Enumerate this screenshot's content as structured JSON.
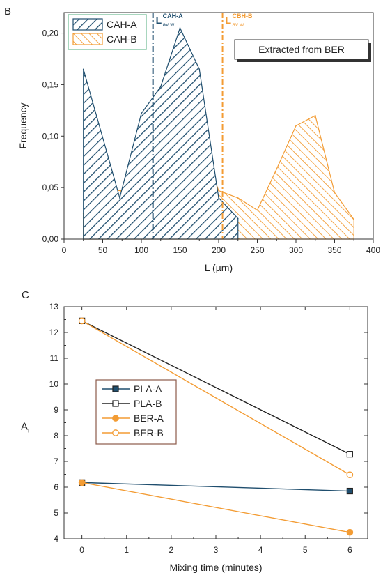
{
  "chart_data": [
    {
      "panel": "B",
      "type": "area",
      "xlabel": "L (µm)",
      "ylabel": "Frequency",
      "xlim": [
        0,
        400
      ],
      "ylim": [
        0,
        0.22
      ],
      "xticks": [
        0,
        50,
        100,
        150,
        200,
        250,
        300,
        350,
        400
      ],
      "yticks": [
        0,
        0.05,
        0.1,
        0.15,
        0.2
      ],
      "ytick_labels": [
        "0,00",
        "0,05",
        "0,10",
        "0,15",
        "0,20"
      ],
      "annotation": "Extracted from BER",
      "legend": {
        "placement": "top-left",
        "entries": [
          "CAH-A",
          "CAH-B"
        ]
      },
      "series": [
        {
          "name": "CAH-A",
          "color": "#1f4e6e",
          "x": [
            25,
            72,
            100,
            125,
            150,
            175,
            200,
            225
          ],
          "y": [
            0.165,
            0.04,
            0.122,
            0.148,
            0.205,
            0.165,
            0.04,
            0.02
          ]
        },
        {
          "name": "CAH-B",
          "color": "#f39c34",
          "x": [
            25,
            50,
            75,
            100,
            125,
            150,
            175,
            200,
            225,
            250,
            275,
            300,
            325,
            350,
            375
          ],
          "y": [
            0.025,
            0.047,
            0.047,
            0.075,
            0.1,
            0.14,
            0.1,
            0.047,
            0.04,
            0.028,
            0.068,
            0.11,
            0.12,
            0.045,
            0.019
          ]
        }
      ],
      "vlines": [
        {
          "label_main": "L",
          "label_sup": "CAH-A",
          "label_sub": "av w",
          "x": 115,
          "color": "#1f4e6e"
        },
        {
          "label_main": "L",
          "label_sup": "CBH-B",
          "label_sub": "av w",
          "x": 205,
          "color": "#f39c34"
        }
      ]
    },
    {
      "panel": "C",
      "type": "line",
      "xlabel": "Mixing time (minutes)",
      "ylabel_main": "A",
      "ylabel_sub": "r",
      "xlim": [
        -0.4,
        6.4
      ],
      "ylim": [
        4,
        13
      ],
      "xticks": [
        0,
        1,
        2,
        3,
        4,
        5,
        6
      ],
      "yticks": [
        4,
        5,
        6,
        7,
        8,
        9,
        10,
        11,
        12,
        13
      ],
      "legend": {
        "placement": "center-left",
        "entries": [
          "PLA-A",
          "PLA-B",
          "BER-A",
          "BER-B"
        ]
      },
      "series": [
        {
          "name": "PLA-A",
          "color": "#1f4e6e",
          "line_color": "#1f4e6e",
          "marker": "square-filled",
          "x": [
            0,
            6
          ],
          "y": [
            6.18,
            5.85
          ]
        },
        {
          "name": "PLA-B",
          "color": "#222222",
          "line_color": "#222222",
          "marker": "square-open",
          "x": [
            0,
            6
          ],
          "y": [
            12.45,
            7.28
          ]
        },
        {
          "name": "BER-A",
          "color": "#f39c34",
          "line_color": "#f39c34",
          "marker": "circle-filled",
          "x": [
            0,
            6
          ],
          "y": [
            6.18,
            4.25
          ]
        },
        {
          "name": "BER-B",
          "color": "#f39c34",
          "line_color": "#f39c34",
          "marker": "circle-open",
          "x": [
            0,
            6
          ],
          "y": [
            12.45,
            6.48
          ]
        }
      ]
    }
  ],
  "panels": {
    "b_letter": "B",
    "c_letter": "C"
  }
}
